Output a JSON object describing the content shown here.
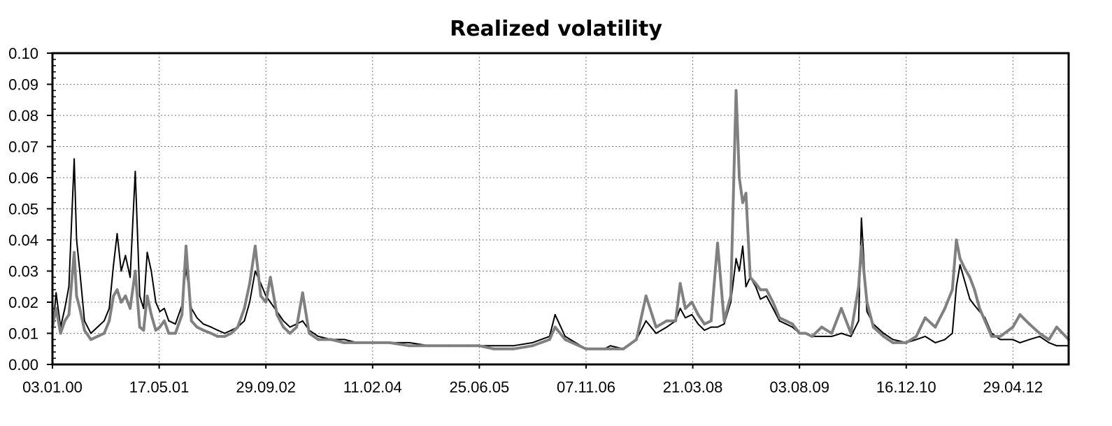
{
  "chart_data": {
    "type": "line",
    "title": "Realized volatility",
    "xlabel": "",
    "ylabel": "",
    "xlim": [
      "2000-01-03",
      "2013-01-15"
    ],
    "ylim": [
      0,
      0.1
    ],
    "grid": true,
    "legend": "none",
    "y_ticks": [
      "0.00",
      "0.01",
      "0.02",
      "0.03",
      "0.04",
      "0.05",
      "0.06",
      "0.07",
      "0.08",
      "0.09",
      "0.10"
    ],
    "x_ticks": [
      {
        "date": "2000-01-03",
        "label": "03.01.00"
      },
      {
        "date": "2001-05-17",
        "label": "17.05.01"
      },
      {
        "date": "2002-09-29",
        "label": "29.09.02"
      },
      {
        "date": "2004-02-11",
        "label": "11.02.04"
      },
      {
        "date": "2005-06-25",
        "label": "25.06.05"
      },
      {
        "date": "2006-11-07",
        "label": "07.11.06"
      },
      {
        "date": "2008-03-21",
        "label": "21.03.08"
      },
      {
        "date": "2009-08-03",
        "label": "03.08.09"
      },
      {
        "date": "2010-12-16",
        "label": "16.12.10"
      },
      {
        "date": "2012-04-29",
        "label": "29.04.12"
      }
    ],
    "series": [
      {
        "color": "#000000",
        "line_width": 2,
        "x": [
          "2000-01-03",
          "2000-01-20",
          "2000-02-10",
          "2000-03-01",
          "2000-03-20",
          "2000-04-14",
          "2000-04-25",
          "2000-05-10",
          "2000-06-01",
          "2000-07-01",
          "2000-08-01",
          "2000-09-01",
          "2000-09-25",
          "2000-10-15",
          "2000-11-01",
          "2000-11-20",
          "2000-12-10",
          "2001-01-01",
          "2001-01-25",
          "2001-02-15",
          "2001-03-05",
          "2001-03-22",
          "2001-04-10",
          "2001-05-01",
          "2001-05-20",
          "2001-06-10",
          "2001-07-01",
          "2001-08-01",
          "2001-09-01",
          "2001-09-20",
          "2001-10-15",
          "2001-11-10",
          "2001-12-10",
          "2002-01-15",
          "2002-02-15",
          "2002-03-20",
          "2002-04-20",
          "2002-05-20",
          "2002-06-20",
          "2002-07-15",
          "2002-08-10",
          "2002-09-05",
          "2002-09-29",
          "2002-10-20",
          "2002-11-20",
          "2002-12-20",
          "2003-01-20",
          "2003-02-20",
          "2003-03-20",
          "2003-04-20",
          "2003-06-01",
          "2003-08-01",
          "2003-10-01",
          "2003-12-01",
          "2004-02-11",
          "2004-05-01",
          "2004-08-01",
          "2004-11-01",
          "2005-02-01",
          "2005-05-01",
          "2005-06-25",
          "2005-09-01",
          "2005-12-01",
          "2006-03-01",
          "2006-05-20",
          "2006-06-15",
          "2006-08-01",
          "2006-11-07",
          "2007-02-01",
          "2007-03-01",
          "2007-05-01",
          "2007-07-01",
          "2007-08-15",
          "2007-10-01",
          "2007-11-20",
          "2008-01-01",
          "2008-01-22",
          "2008-02-15",
          "2008-03-17",
          "2008-04-15",
          "2008-05-15",
          "2008-06-15",
          "2008-07-15",
          "2008-08-15",
          "2008-09-15",
          "2008-10-10",
          "2008-10-25",
          "2008-11-10",
          "2008-11-25",
          "2008-12-15",
          "2009-01-10",
          "2009-02-01",
          "2009-03-01",
          "2009-04-01",
          "2009-05-01",
          "2009-06-01",
          "2009-07-01",
          "2009-08-03",
          "2009-09-01",
          "2009-10-01",
          "2009-11-15",
          "2010-01-01",
          "2010-02-15",
          "2010-04-01",
          "2010-05-07",
          "2010-05-20",
          "2010-06-15",
          "2010-07-15",
          "2010-09-01",
          "2010-10-15",
          "2010-12-16",
          "2011-02-01",
          "2011-03-15",
          "2011-05-01",
          "2011-06-15",
          "2011-07-20",
          "2011-08-08",
          "2011-08-25",
          "2011-09-15",
          "2011-10-10",
          "2011-11-01",
          "2011-11-25",
          "2011-12-20",
          "2012-01-20",
          "2012-03-01",
          "2012-04-29",
          "2012-06-01",
          "2012-07-15",
          "2012-09-01",
          "2012-10-15",
          "2012-11-20",
          "2013-01-15"
        ],
        "values": [
          0.01,
          0.023,
          0.012,
          0.018,
          0.025,
          0.066,
          0.04,
          0.03,
          0.014,
          0.01,
          0.012,
          0.014,
          0.018,
          0.032,
          0.042,
          0.03,
          0.035,
          0.028,
          0.062,
          0.022,
          0.018,
          0.036,
          0.03,
          0.02,
          0.017,
          0.018,
          0.014,
          0.013,
          0.019,
          0.031,
          0.018,
          0.015,
          0.013,
          0.012,
          0.011,
          0.01,
          0.011,
          0.012,
          0.014,
          0.02,
          0.03,
          0.026,
          0.022,
          0.02,
          0.017,
          0.014,
          0.012,
          0.013,
          0.014,
          0.011,
          0.009,
          0.008,
          0.008,
          0.007,
          0.007,
          0.007,
          0.007,
          0.006,
          0.006,
          0.006,
          0.006,
          0.006,
          0.006,
          0.007,
          0.009,
          0.016,
          0.009,
          0.005,
          0.005,
          0.006,
          0.005,
          0.008,
          0.014,
          0.01,
          0.012,
          0.014,
          0.018,
          0.015,
          0.016,
          0.013,
          0.011,
          0.012,
          0.012,
          0.013,
          0.02,
          0.034,
          0.03,
          0.038,
          0.025,
          0.028,
          0.025,
          0.021,
          0.022,
          0.018,
          0.014,
          0.013,
          0.012,
          0.01,
          0.01,
          0.009,
          0.009,
          0.009,
          0.01,
          0.009,
          0.014,
          0.047,
          0.017,
          0.013,
          0.01,
          0.008,
          0.007,
          0.008,
          0.009,
          0.007,
          0.008,
          0.01,
          0.025,
          0.032,
          0.027,
          0.021,
          0.019,
          0.017,
          0.015,
          0.01,
          0.008,
          0.008,
          0.007,
          0.008,
          0.009,
          0.007,
          0.006,
          0.006
        ]
      },
      {
        "color": "#808080",
        "line_width": 4,
        "x": [
          "2000-01-03",
          "2000-01-20",
          "2000-02-10",
          "2000-03-01",
          "2000-03-20",
          "2000-04-14",
          "2000-04-25",
          "2000-05-10",
          "2000-06-01",
          "2000-07-01",
          "2000-08-01",
          "2000-09-01",
          "2000-09-25",
          "2000-10-15",
          "2000-11-01",
          "2000-11-20",
          "2000-12-10",
          "2001-01-01",
          "2001-01-25",
          "2001-02-15",
          "2001-03-05",
          "2001-03-22",
          "2001-04-10",
          "2001-05-01",
          "2001-05-20",
          "2001-06-10",
          "2001-07-01",
          "2001-08-01",
          "2001-09-01",
          "2001-09-20",
          "2001-10-15",
          "2001-11-10",
          "2001-12-10",
          "2002-01-15",
          "2002-02-15",
          "2002-03-20",
          "2002-04-20",
          "2002-05-20",
          "2002-06-20",
          "2002-07-15",
          "2002-08-10",
          "2002-09-05",
          "2002-09-29",
          "2002-10-20",
          "2002-11-20",
          "2002-12-20",
          "2003-01-20",
          "2003-02-20",
          "2003-03-20",
          "2003-04-20",
          "2003-06-01",
          "2003-08-01",
          "2003-10-01",
          "2003-12-01",
          "2004-02-11",
          "2004-05-01",
          "2004-08-01",
          "2004-11-01",
          "2005-02-01",
          "2005-05-01",
          "2005-06-25",
          "2005-09-01",
          "2005-12-01",
          "2006-03-01",
          "2006-05-20",
          "2006-06-15",
          "2006-08-01",
          "2006-11-07",
          "2007-02-01",
          "2007-03-01",
          "2007-05-01",
          "2007-07-01",
          "2007-08-15",
          "2007-10-01",
          "2007-11-20",
          "2008-01-01",
          "2008-01-22",
          "2008-02-15",
          "2008-03-17",
          "2008-04-15",
          "2008-05-15",
          "2008-06-15",
          "2008-07-15",
          "2008-08-15",
          "2008-09-15",
          "2008-10-10",
          "2008-10-25",
          "2008-11-10",
          "2008-11-25",
          "2008-12-15",
          "2009-01-10",
          "2009-02-01",
          "2009-03-01",
          "2009-04-01",
          "2009-05-01",
          "2009-06-01",
          "2009-07-01",
          "2009-08-03",
          "2009-09-01",
          "2009-10-01",
          "2009-11-15",
          "2010-01-01",
          "2010-02-15",
          "2010-04-01",
          "2010-05-07",
          "2010-05-20",
          "2010-06-15",
          "2010-07-15",
          "2010-09-01",
          "2010-10-15",
          "2010-12-16",
          "2011-02-01",
          "2011-03-15",
          "2011-05-01",
          "2011-06-15",
          "2011-07-20",
          "2011-08-08",
          "2011-08-25",
          "2011-09-15",
          "2011-10-10",
          "2011-11-01",
          "2011-11-25",
          "2011-12-20",
          "2012-01-20",
          "2012-03-01",
          "2012-04-29",
          "2012-06-01",
          "2012-07-15",
          "2012-09-01",
          "2012-10-15",
          "2012-11-20",
          "2013-01-15"
        ],
        "values": [
          0.012,
          0.018,
          0.01,
          0.014,
          0.016,
          0.036,
          0.022,
          0.018,
          0.011,
          0.008,
          0.009,
          0.01,
          0.014,
          0.022,
          0.024,
          0.02,
          0.022,
          0.018,
          0.03,
          0.012,
          0.011,
          0.022,
          0.016,
          0.011,
          0.012,
          0.014,
          0.01,
          0.01,
          0.016,
          0.038,
          0.014,
          0.012,
          0.011,
          0.01,
          0.009,
          0.009,
          0.01,
          0.012,
          0.018,
          0.026,
          0.038,
          0.022,
          0.02,
          0.028,
          0.016,
          0.012,
          0.01,
          0.012,
          0.023,
          0.01,
          0.008,
          0.008,
          0.007,
          0.007,
          0.007,
          0.007,
          0.006,
          0.006,
          0.006,
          0.006,
          0.006,
          0.005,
          0.005,
          0.006,
          0.008,
          0.012,
          0.008,
          0.005,
          0.005,
          0.005,
          0.005,
          0.008,
          0.022,
          0.012,
          0.014,
          0.014,
          0.026,
          0.018,
          0.02,
          0.016,
          0.013,
          0.014,
          0.039,
          0.014,
          0.022,
          0.088,
          0.06,
          0.052,
          0.055,
          0.028,
          0.026,
          0.024,
          0.024,
          0.02,
          0.015,
          0.014,
          0.013,
          0.01,
          0.01,
          0.009,
          0.012,
          0.01,
          0.018,
          0.01,
          0.025,
          0.038,
          0.02,
          0.012,
          0.009,
          0.007,
          0.007,
          0.009,
          0.015,
          0.012,
          0.018,
          0.024,
          0.04,
          0.034,
          0.031,
          0.028,
          0.024,
          0.018,
          0.014,
          0.009,
          0.009,
          0.012,
          0.016,
          0.013,
          0.01,
          0.008,
          0.012,
          0.008
        ]
      }
    ]
  }
}
